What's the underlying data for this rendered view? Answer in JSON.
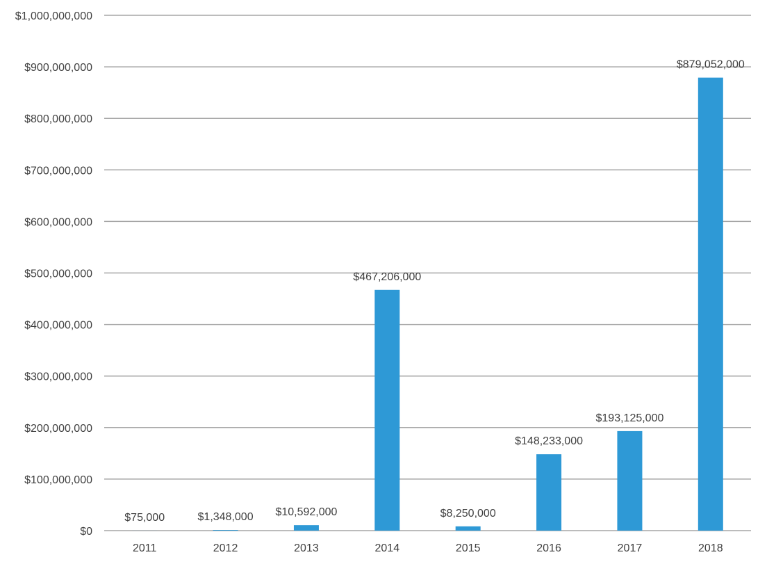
{
  "chart_data": {
    "type": "bar",
    "title": "",
    "xlabel": "",
    "ylabel": "",
    "categories": [
      "2011",
      "2012",
      "2013",
      "2014",
      "2015",
      "2016",
      "2017",
      "2018"
    ],
    "values": [
      75000,
      1348000,
      10592000,
      467206000,
      8250000,
      148233000,
      193125000,
      879052000
    ],
    "data_labels": [
      "$75,000",
      "$1,348,000",
      "$10,592,000",
      "$467,206,000",
      "$8,250,000",
      "$148,233,000",
      "$193,125,000",
      "$879,052,000"
    ],
    "ylim": [
      0,
      1000000000
    ],
    "yticks": [
      0,
      100000000,
      200000000,
      300000000,
      400000000,
      500000000,
      600000000,
      700000000,
      800000000,
      900000000,
      1000000000
    ],
    "ytick_labels": [
      "$0",
      "$100,000,000",
      "$200,000,000",
      "$300,000,000",
      "$400,000,000",
      "$500,000,000",
      "$600,000,000",
      "$700,000,000",
      "$800,000,000",
      "$900,000,000",
      "$1,000,000,000"
    ],
    "grid": true,
    "legend": "none",
    "colors": {
      "bar": "#2E99D6",
      "grid": "#A6A6A6",
      "axis": "#A6A6A6",
      "text": "#404040"
    }
  }
}
